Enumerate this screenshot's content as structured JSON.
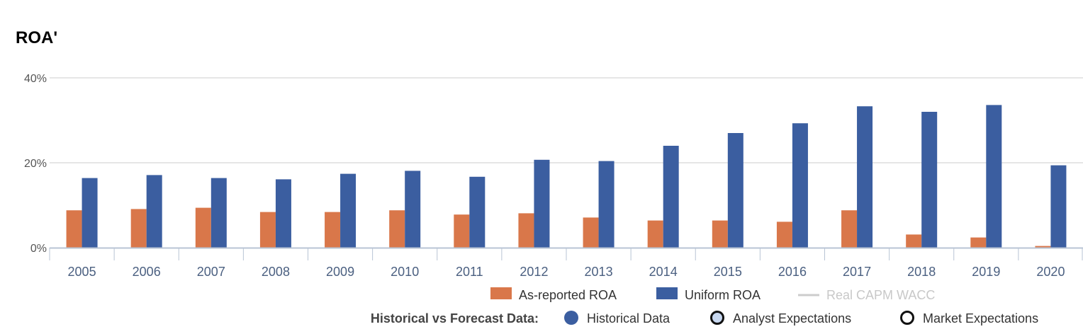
{
  "chart_data": {
    "type": "bar",
    "title": "ROA'",
    "xlabel": "",
    "ylabel": "",
    "categories": [
      "2005",
      "2006",
      "2007",
      "2008",
      "2009",
      "2010",
      "2011",
      "2012",
      "2013",
      "2014",
      "2015",
      "2016",
      "2017",
      "2018",
      "2019",
      "2020"
    ],
    "series": [
      {
        "name": "As-reported ROA",
        "color": "#d9774a",
        "values": [
          8.8,
          9.1,
          9.4,
          8.4,
          8.4,
          8.8,
          7.8,
          8.1,
          7.1,
          6.4,
          6.4,
          6.1,
          8.8,
          3.1,
          2.4,
          0.4
        ]
      },
      {
        "name": "Uniform ROA",
        "color": "#3b5ea0",
        "values": [
          16.4,
          17.1,
          16.4,
          16.1,
          17.4,
          18.1,
          16.7,
          20.7,
          20.4,
          24.0,
          27.0,
          29.3,
          33.3,
          32.0,
          33.6,
          19.4
        ]
      }
    ],
    "ylim": [
      0,
      40
    ],
    "yticks": [
      "0%",
      "20%",
      "40%"
    ],
    "grid": true,
    "legend": {
      "placement": "bottom",
      "items": [
        {
          "label": "As-reported ROA",
          "color": "#d9774a",
          "shape": "square"
        },
        {
          "label": "Uniform ROA",
          "color": "#3b5ea0",
          "shape": "square"
        },
        {
          "label": "Real CAPM WACC",
          "color": "#cccccc",
          "shape": "line",
          "disabled": true
        }
      ],
      "forecast_label": "Historical vs Forecast Data:",
      "forecast_items": [
        {
          "label": "Historical Data",
          "style": "filled",
          "color": "#3b5ea0"
        },
        {
          "label": "Analyst Expectations",
          "style": "ring-light",
          "color": "#c8d8f0"
        },
        {
          "label": "Market Expectations",
          "style": "ring",
          "color": "#ffffff"
        }
      ]
    }
  }
}
